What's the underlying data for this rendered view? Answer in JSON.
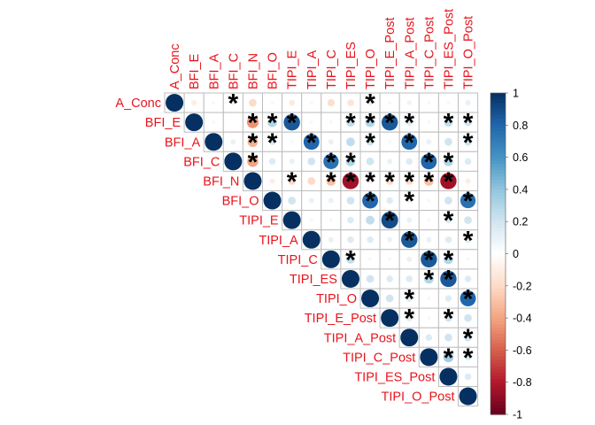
{
  "chart_data": {
    "type": "heatmap",
    "subtype": "correlation-matrix-upper-circles",
    "variables": [
      "A_Conc",
      "BFI_E",
      "BFI_A",
      "BFI_C",
      "BFI_N",
      "BFI_O",
      "TIPI_E",
      "TIPI_A",
      "TIPI_C",
      "TIPI_ES",
      "TIPI_O",
      "TIPI_E_Post",
      "TIPI_A_Post",
      "TIPI_C_Post",
      "TIPI_ES_Post",
      "TIPI_O_Post"
    ],
    "label_color": "#e8141c",
    "significance_marker": "*",
    "matrix": [
      [
        1.0,
        -0.1,
        0.05,
        0.08,
        -0.2,
        0.05,
        -0.12,
        0.05,
        -0.18,
        -0.15,
        0.1,
        -0.05,
        0.08,
        0.05,
        -0.05,
        0.1
      ],
      [
        null,
        1.0,
        0.05,
        0.0,
        -0.45,
        0.3,
        0.85,
        0.05,
        0.05,
        0.25,
        0.3,
        0.85,
        0.15,
        0.05,
        0.25,
        0.2
      ],
      [
        null,
        null,
        1.0,
        0.1,
        -0.35,
        0.15,
        0.05,
        0.8,
        0.1,
        0.25,
        0.2,
        0.05,
        0.8,
        0.1,
        0.2,
        0.2
      ],
      [
        null,
        null,
        null,
        1.0,
        -0.4,
        0.15,
        0.1,
        0.2,
        0.75,
        0.3,
        0.2,
        0.1,
        0.15,
        0.8,
        0.3,
        0.15
      ],
      [
        null,
        null,
        null,
        null,
        1.0,
        -0.1,
        -0.2,
        -0.2,
        -0.3,
        -0.85,
        -0.1,
        -0.2,
        -0.2,
        -0.3,
        -0.85,
        -0.1
      ],
      [
        null,
        null,
        null,
        null,
        null,
        1.0,
        0.2,
        0.1,
        0.1,
        0.2,
        0.8,
        0.15,
        0.1,
        0.05,
        0.2,
        0.75
      ],
      [
        null,
        null,
        null,
        null,
        null,
        null,
        1.0,
        0.05,
        0.05,
        0.15,
        0.25,
        0.9,
        0.1,
        -0.05,
        0.15,
        0.2
      ],
      [
        null,
        null,
        null,
        null,
        null,
        null,
        null,
        1.0,
        0.1,
        0.15,
        0.15,
        0.1,
        0.85,
        0.1,
        0.15,
        0.15
      ],
      [
        null,
        null,
        null,
        null,
        null,
        null,
        null,
        null,
        1.0,
        0.25,
        0.05,
        0.05,
        0.1,
        0.85,
        0.3,
        0.05
      ],
      [
        null,
        null,
        null,
        null,
        null,
        null,
        null,
        null,
        null,
        1.0,
        0.2,
        0.15,
        0.15,
        0.3,
        0.85,
        0.15
      ],
      [
        null,
        null,
        null,
        null,
        null,
        null,
        null,
        null,
        null,
        null,
        1.0,
        0.2,
        0.15,
        0.05,
        0.15,
        0.8
      ],
      [
        null,
        null,
        null,
        null,
        null,
        null,
        null,
        null,
        null,
        null,
        null,
        1.0,
        0.15,
        0.05,
        0.2,
        0.2
      ],
      [
        null,
        null,
        null,
        null,
        null,
        null,
        null,
        null,
        null,
        null,
        null,
        null,
        1.0,
        0.15,
        0.2,
        0.2
      ],
      [
        null,
        null,
        null,
        null,
        null,
        null,
        null,
        null,
        null,
        null,
        null,
        null,
        null,
        1.0,
        0.35,
        0.15
      ],
      [
        null,
        null,
        null,
        null,
        null,
        null,
        null,
        null,
        null,
        null,
        null,
        null,
        null,
        null,
        1.0,
        0.15
      ],
      [
        null,
        null,
        null,
        null,
        null,
        null,
        null,
        null,
        null,
        null,
        null,
        null,
        null,
        null,
        null,
        1.0
      ]
    ],
    "significant": [
      [
        0,
        3
      ],
      [
        0,
        10
      ],
      [
        1,
        4
      ],
      [
        1,
        5
      ],
      [
        1,
        6
      ],
      [
        1,
        9
      ],
      [
        1,
        10
      ],
      [
        1,
        11
      ],
      [
        1,
        12
      ],
      [
        1,
        14
      ],
      [
        1,
        15
      ],
      [
        2,
        4
      ],
      [
        2,
        5
      ],
      [
        2,
        7
      ],
      [
        2,
        10
      ],
      [
        2,
        12
      ],
      [
        2,
        15
      ],
      [
        3,
        4
      ],
      [
        3,
        8
      ],
      [
        3,
        9
      ],
      [
        3,
        13
      ],
      [
        3,
        14
      ],
      [
        4,
        6
      ],
      [
        4,
        8
      ],
      [
        4,
        9
      ],
      [
        4,
        10
      ],
      [
        4,
        11
      ],
      [
        4,
        12
      ],
      [
        4,
        13
      ],
      [
        4,
        14
      ],
      [
        5,
        10
      ],
      [
        5,
        12
      ],
      [
        5,
        15
      ],
      [
        6,
        11
      ],
      [
        6,
        14
      ],
      [
        7,
        12
      ],
      [
        7,
        15
      ],
      [
        8,
        9
      ],
      [
        8,
        13
      ],
      [
        8,
        14
      ],
      [
        9,
        13
      ],
      [
        9,
        14
      ],
      [
        10,
        12
      ],
      [
        10,
        15
      ],
      [
        11,
        12
      ],
      [
        11,
        14
      ],
      [
        12,
        15
      ],
      [
        13,
        14
      ],
      [
        13,
        15
      ]
    ],
    "colorbar": {
      "range": [
        -1,
        1
      ],
      "ticks": [
        "1",
        "0.8",
        "0.6",
        "0.4",
        "0.2",
        "0",
        "-0.2",
        "-0.4",
        "-0.6",
        "-0.8",
        "-1"
      ],
      "colors": [
        "#67001f",
        "#b2182b",
        "#d6604d",
        "#f4a582",
        "#fddbc7",
        "#ffffff",
        "#d1e5f0",
        "#92c5de",
        "#4393c3",
        "#2166ac",
        "#053061"
      ]
    },
    "title": "",
    "xlabel": "",
    "ylabel": ""
  }
}
